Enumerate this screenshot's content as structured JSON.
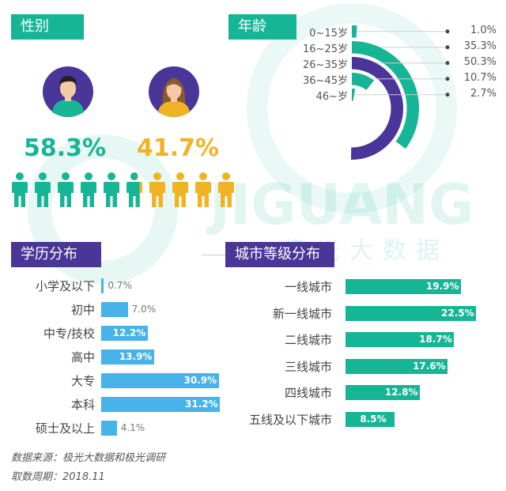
{
  "gender": {
    "title": "性别",
    "male": {
      "value": "58.3%",
      "color": "#16b596",
      "icon": "male-avatar-icon"
    },
    "female": {
      "value": "41.7%",
      "color": "#f0b323",
      "icon": "female-avatar-icon"
    }
  },
  "age": {
    "title": "年龄",
    "inner_color": "#4a3599",
    "outer_color": "#16b596"
  },
  "education": {
    "title": "学历分布",
    "color": "#47b3e8"
  },
  "city": {
    "title": "城市等级分布",
    "color": "#16b596"
  },
  "watermark": {
    "text": "JIGUANG",
    "subtext": "极光大数据"
  },
  "footer": {
    "source": "数据来源：极光大数据和极光调研",
    "period": "取数周期：2018.11"
  },
  "chart_data": [
    {
      "type": "pie",
      "name_text": "性别",
      "categories": [
        "male",
        "female"
      ],
      "values": [
        58.3,
        41.7
      ],
      "labels": [
        "58.3%",
        "41.7%"
      ]
    },
    {
      "type": "bar",
      "subtype": "radial",
      "title": "年龄",
      "categories": [
        "0~15岁",
        "16~25岁",
        "26~35岁",
        "36~45岁",
        "46~岁"
      ],
      "values": [
        1.0,
        35.3,
        50.3,
        10.7,
        2.7
      ],
      "labels": [
        "1.0%",
        "35.3%",
        "50.3%",
        "10.7%",
        "2.7%"
      ]
    },
    {
      "type": "bar",
      "orientation": "horizontal",
      "title": "学历分布",
      "categories": [
        "小学及以下",
        "初中",
        "中专/技校",
        "高中",
        "大专",
        "本科",
        "硕士及以上"
      ],
      "values": [
        0.7,
        7.0,
        12.2,
        13.9,
        30.9,
        31.2,
        4.1
      ],
      "labels": [
        "0.7%",
        "7.0%",
        "12.2%",
        "13.9%",
        "30.9%",
        "31.2%",
        "4.1%"
      ]
    },
    {
      "type": "bar",
      "orientation": "horizontal",
      "title": "城市等级分布",
      "categories": [
        "一线城市",
        "新一线城市",
        "二线城市",
        "三线城市",
        "四线城市",
        "五线及以下城市"
      ],
      "values": [
        19.9,
        22.5,
        18.7,
        17.6,
        12.8,
        8.5
      ],
      "labels": [
        "19.9%",
        "22.5%",
        "18.7%",
        "17.6%",
        "12.8%",
        "8.5%"
      ]
    }
  ]
}
